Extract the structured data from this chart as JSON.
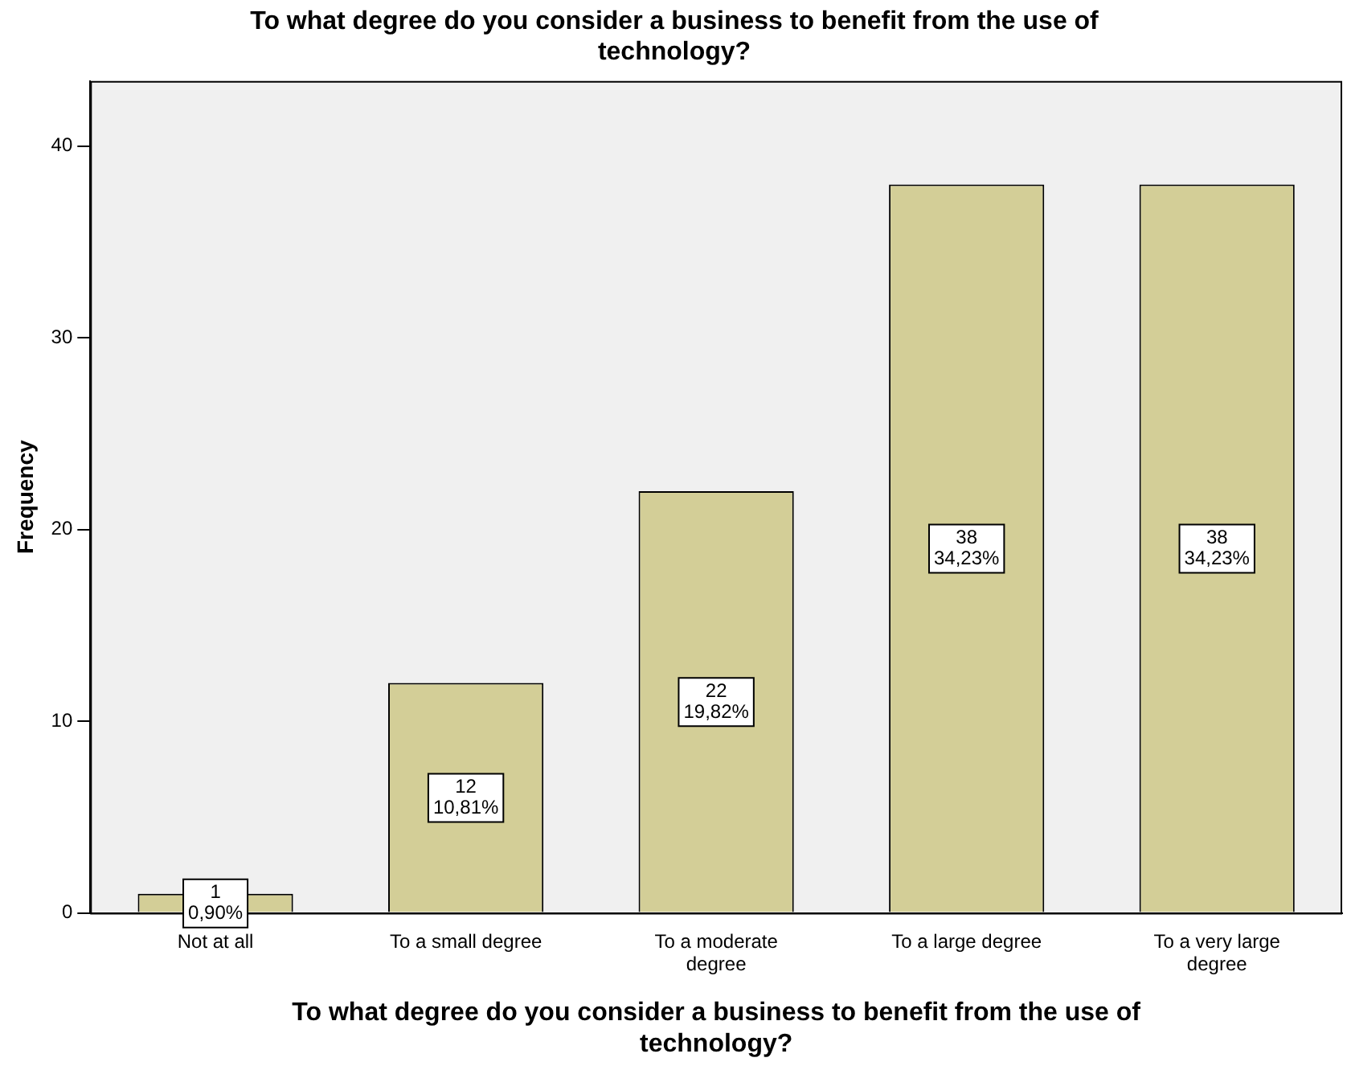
{
  "chart_data": {
    "type": "bar",
    "title": "To what degree do you consider a business to benefit from the use of technology?",
    "xlabel": "To what degree do you consider a business to benefit from the use of technology?",
    "ylabel": "Frequency",
    "categories": [
      "Not at all",
      "To a small degree",
      "To a moderate degree",
      "To a large degree",
      "To a very large degree"
    ],
    "values": [
      1,
      12,
      22,
      38,
      38
    ],
    "value_labels": [
      "1\n0,90%",
      "12\n10,81%",
      "22\n19,82%",
      "38\n34,23%",
      "38\n34,23%"
    ],
    "color": "#d3ce97",
    "ylim": [
      0,
      43.4
    ],
    "yticks": [
      0,
      10,
      20,
      30,
      40
    ],
    "grid": false,
    "legend": false
  }
}
